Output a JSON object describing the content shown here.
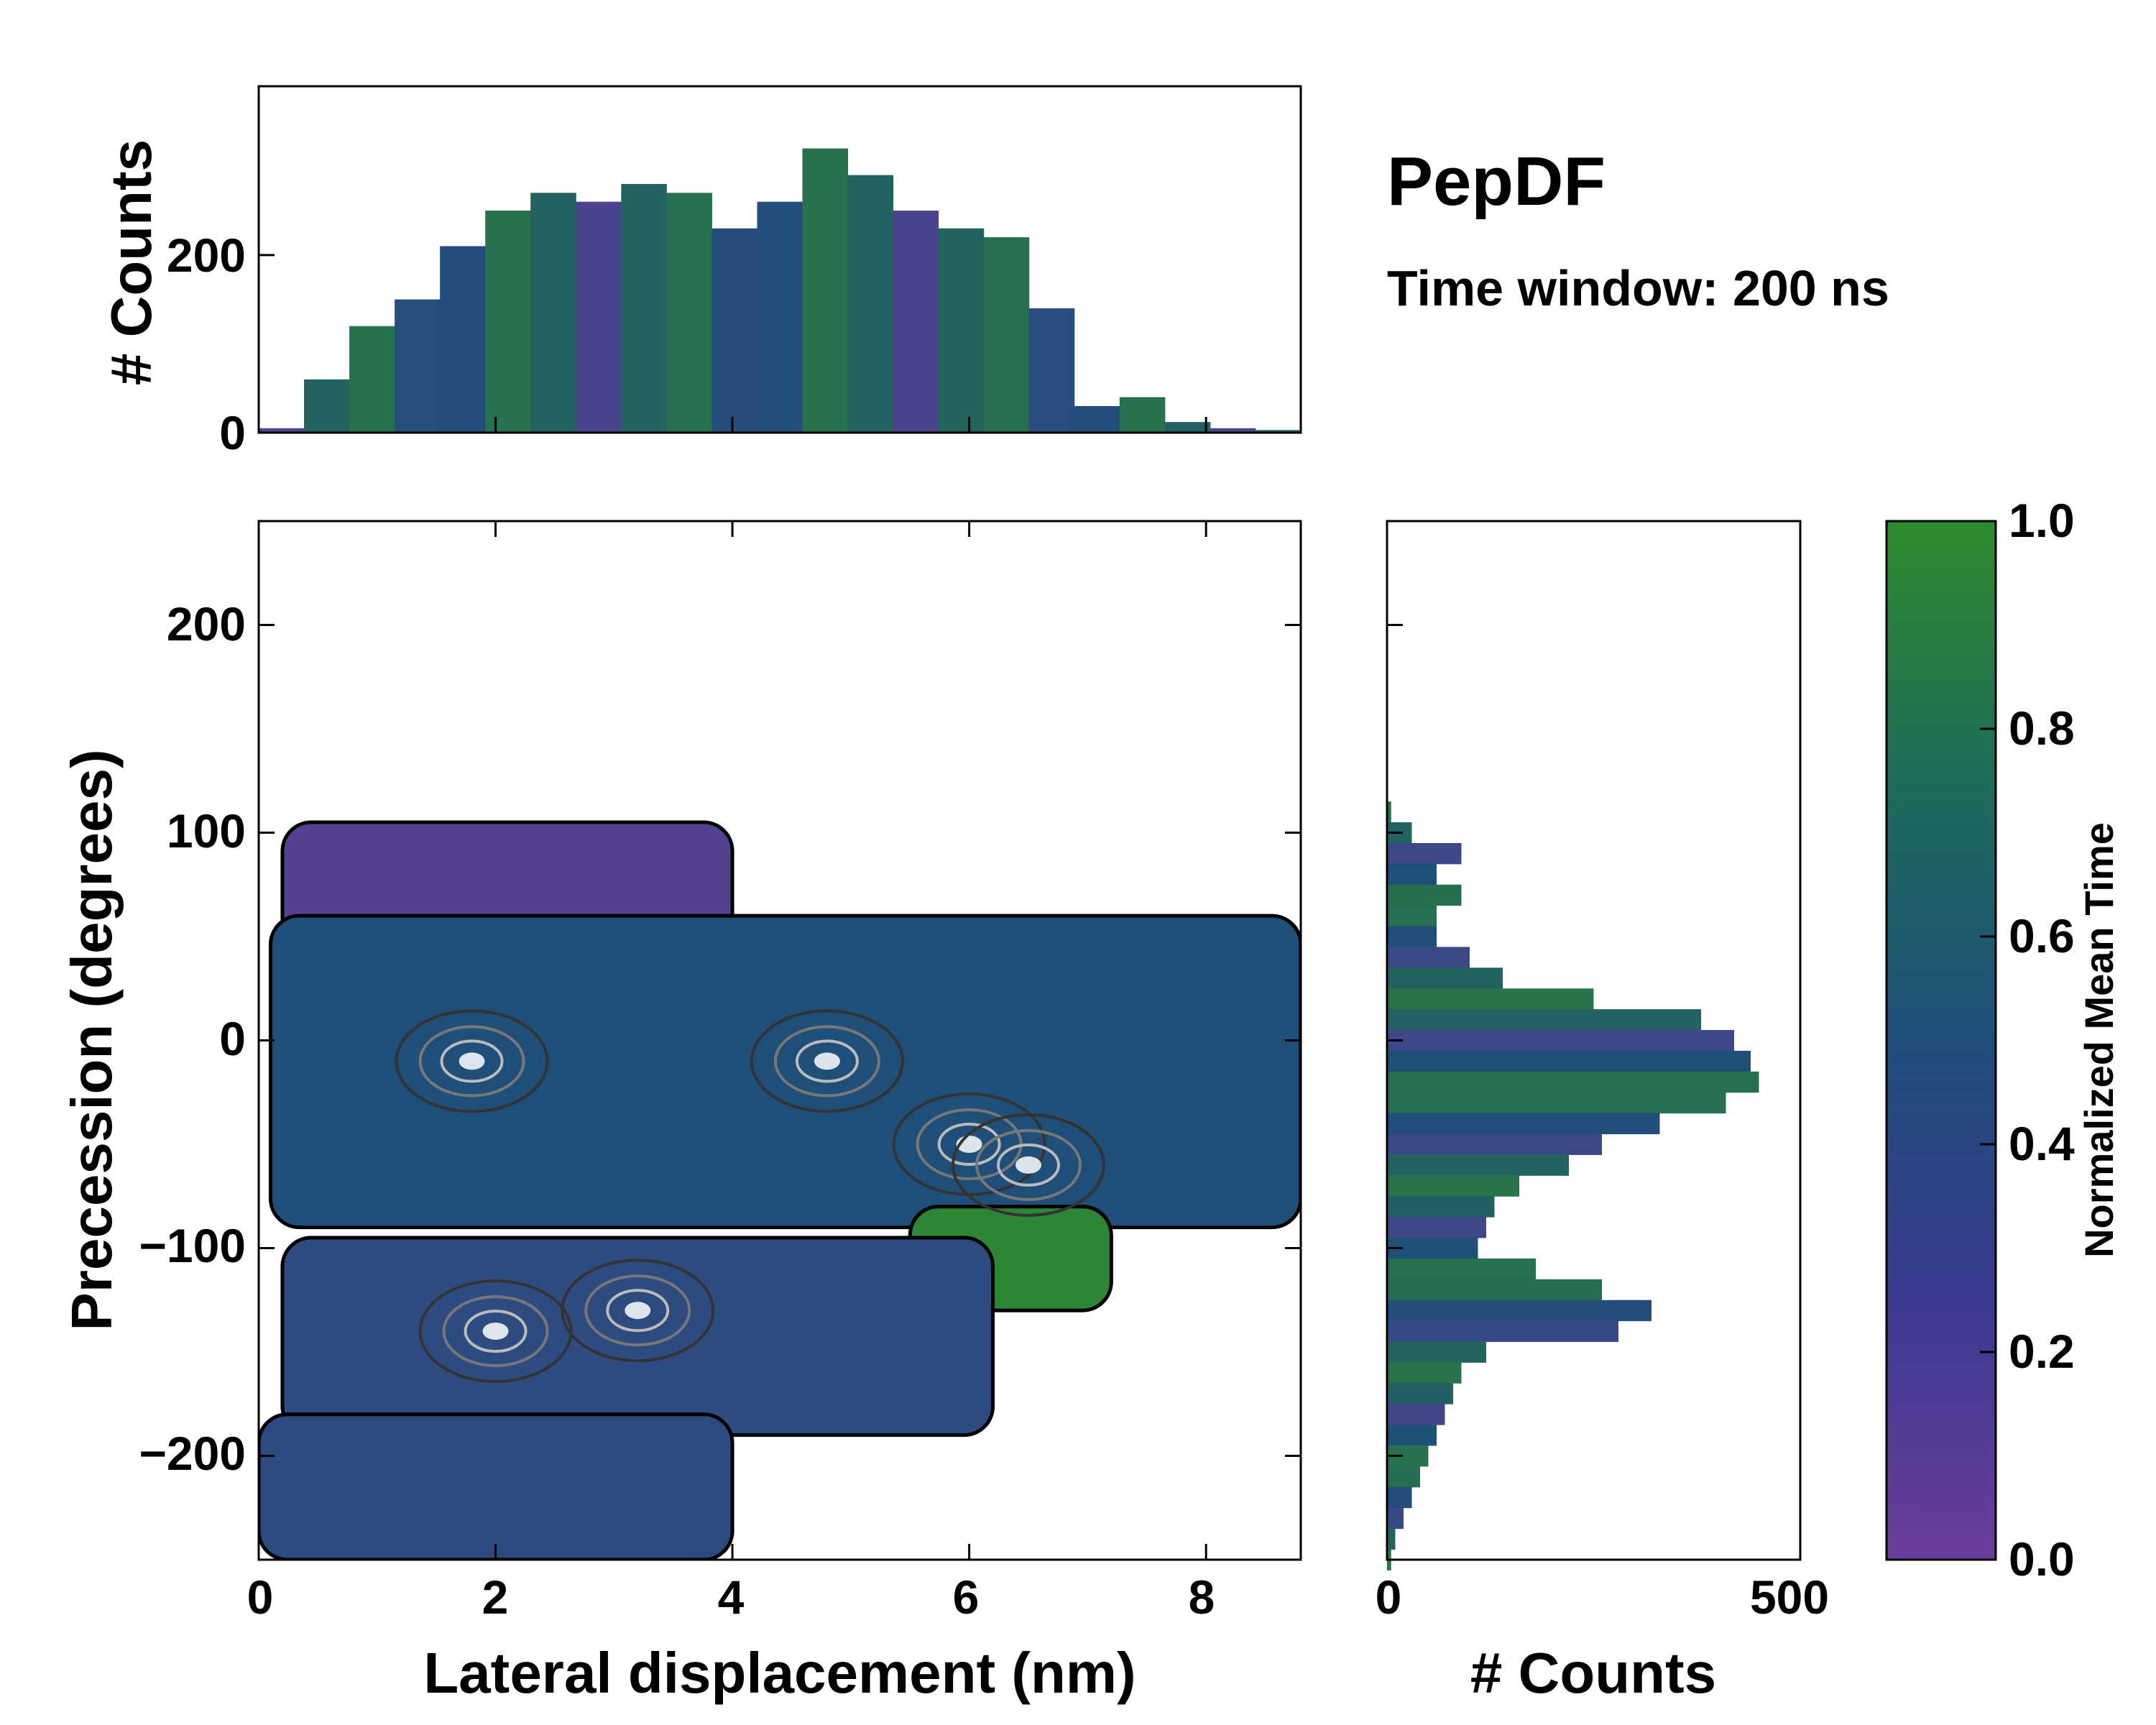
{
  "chart_data": {
    "type": "heatmap",
    "title": "PepDF",
    "subtitle": "Time window: 200 ns",
    "colors": {
      "low": "#6a3d9a",
      "mid": "#1f4e79",
      "high": "#2e8b2e"
    },
    "main": {
      "type": "heatmap",
      "xlabel": "Lateral displacement (nm)",
      "ylabel": "Precession (degrees)",
      "xlim": [
        0,
        8.8
      ],
      "ylim": [
        -250,
        250
      ],
      "xticks": [
        "0",
        "2",
        "4",
        "6",
        "8"
      ],
      "yticks": [
        "−200",
        "−100",
        "0",
        "100",
        "200"
      ],
      "regions": [
        {
          "name": "upper-left purple band",
          "x": [
            0.2,
            4.0
          ],
          "y": [
            20,
            105
          ],
          "mean_time": 0.15
        },
        {
          "name": "central band",
          "x": [
            0.1,
            8.8
          ],
          "y": [
            -90,
            60
          ],
          "mean_time": 0.5
        },
        {
          "name": "right green lobe",
          "x": [
            5.5,
            7.2
          ],
          "y": [
            -130,
            -80
          ],
          "mean_time": 0.95
        },
        {
          "name": "lower band",
          "x": [
            0.2,
            6.2
          ],
          "y": [
            -190,
            -95
          ],
          "mean_time": 0.4
        },
        {
          "name": "bottom strip",
          "x": [
            0.0,
            4.0
          ],
          "y": [
            -250,
            -180
          ],
          "mean_time": 0.42
        }
      ],
      "density_peaks": [
        {
          "x": 4.8,
          "y": -10
        },
        {
          "x": 6.0,
          "y": -50
        },
        {
          "x": 2.0,
          "y": -140
        },
        {
          "x": 1.8,
          "y": -10
        },
        {
          "x": 3.2,
          "y": -130
        },
        {
          "x": 6.5,
          "y": -60
        }
      ]
    },
    "top_histogram": {
      "type": "bar",
      "ylabel": "# Counts",
      "xlim": [
        0,
        8.8
      ],
      "ylim": [
        0,
        390
      ],
      "yticks": [
        "0",
        "200"
      ],
      "x": [
        0.0,
        0.4,
        0.8,
        1.2,
        1.6,
        2.0,
        2.4,
        2.8,
        3.2,
        3.6,
        4.0,
        4.4,
        4.8,
        5.2,
        5.6,
        6.0,
        6.4,
        6.8,
        7.2,
        7.6,
        8.0,
        8.4,
        8.8
      ],
      "values": [
        5,
        60,
        120,
        150,
        210,
        250,
        270,
        260,
        280,
        270,
        230,
        260,
        320,
        290,
        250,
        230,
        220,
        140,
        30,
        40,
        12,
        5,
        3
      ]
    },
    "right_histogram": {
      "type": "bar",
      "orientation": "horizontal",
      "xlabel": "# Counts",
      "xlim": [
        0,
        500
      ],
      "xticks": [
        "0",
        "500"
      ],
      "y": [
        110,
        100,
        90,
        80,
        70,
        60,
        50,
        40,
        30,
        20,
        10,
        0,
        -10,
        -20,
        -30,
        -40,
        -50,
        -60,
        -70,
        -80,
        -90,
        -100,
        -110,
        -120,
        -130,
        -140,
        -150,
        -160,
        -170,
        -180,
        -190,
        -200,
        -210,
        -220,
        -230,
        -240,
        -250
      ],
      "values": [
        5,
        30,
        90,
        60,
        90,
        60,
        60,
        100,
        140,
        250,
        380,
        420,
        440,
        450,
        410,
        330,
        260,
        220,
        160,
        130,
        120,
        110,
        180,
        260,
        320,
        280,
        120,
        90,
        80,
        70,
        60,
        50,
        40,
        30,
        20,
        10,
        5
      ]
    },
    "colorbar": {
      "label": "Normalized Mean Time",
      "range": [
        0,
        1
      ],
      "ticks": [
        "0.0",
        "0.2",
        "0.4",
        "0.6",
        "0.8",
        "1.0"
      ]
    }
  }
}
